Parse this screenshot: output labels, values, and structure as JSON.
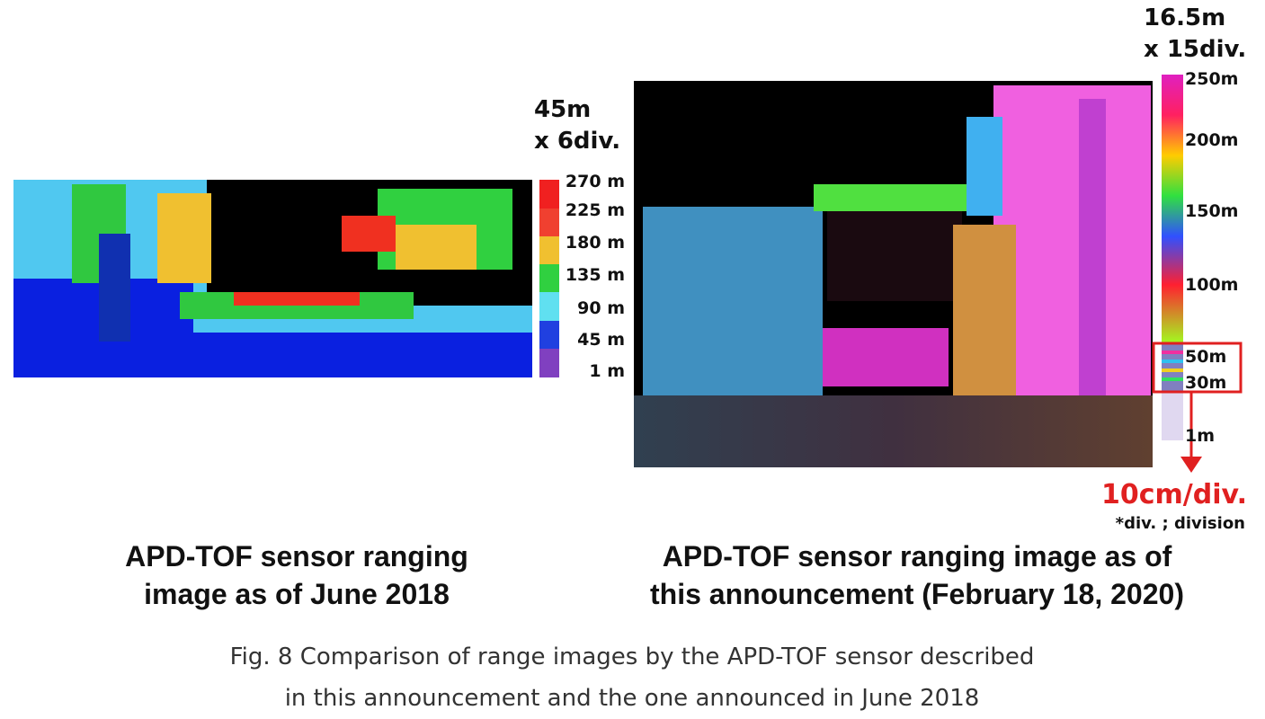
{
  "left_panel": {
    "scale": [
      "45m",
      "x 6div."
    ],
    "legend_labels": [
      "270 m",
      "225 m",
      "180 m",
      "135 m",
      "90 m",
      "45 m",
      "1 m"
    ],
    "caption": [
      "APD-TOF sensor ranging",
      "image as of June 2018"
    ]
  },
  "right_panel": {
    "scale": [
      "16.5m",
      "x 15div."
    ],
    "legend_labels": [
      "250m",
      "200m",
      "150m",
      "100m",
      "50m",
      "30m",
      "1m"
    ],
    "zoom_label": "10cm/div.",
    "note": "*div. ; division",
    "caption": [
      "APD-TOF sensor ranging image as of",
      "this announcement (February 18, 2020)"
    ]
  },
  "figure_caption": [
    "Fig. 8 Comparison of range images by the APD-TOF sensor described",
    "in this announcement and the one announced in June 2018"
  ]
}
